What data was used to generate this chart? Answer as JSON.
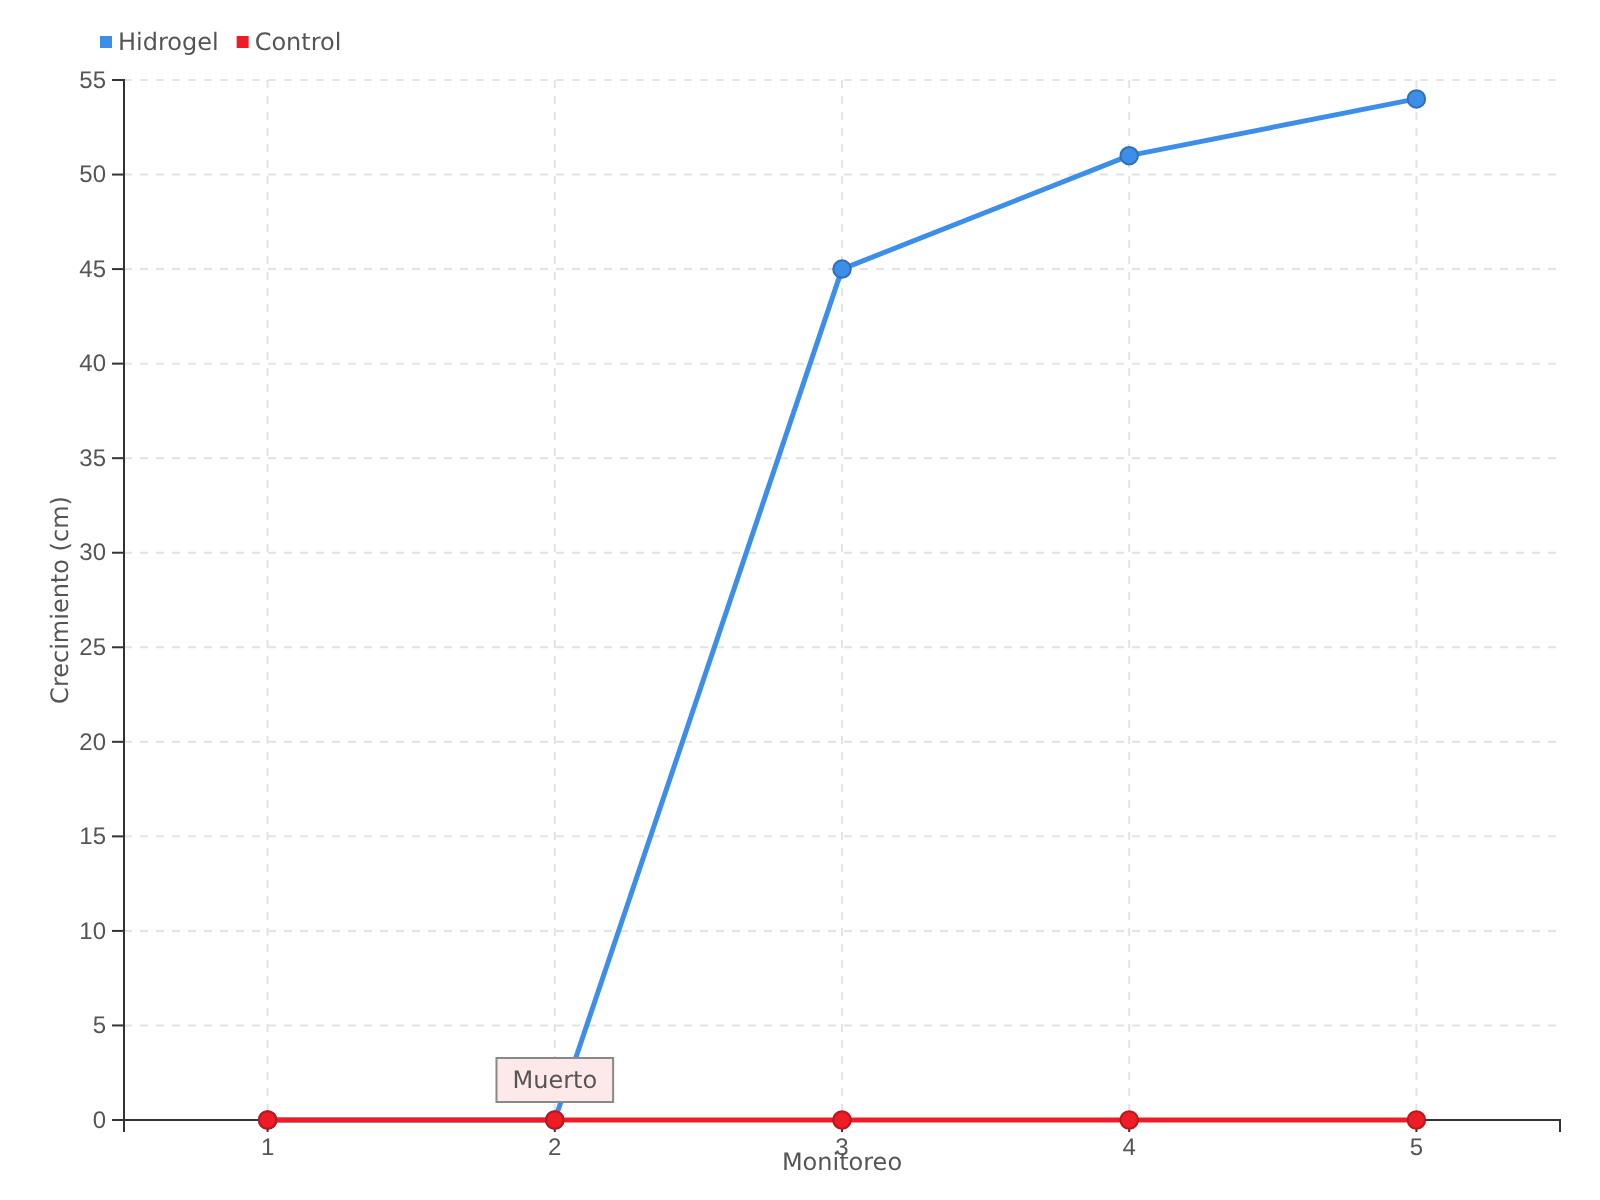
{
  "chart_data": {
    "type": "line",
    "xlabel": "Monitoreo",
    "ylabel": "Crecimiento (cm)",
    "categories": [
      "1",
      "2",
      "3",
      "4",
      "5"
    ],
    "series": [
      {
        "name": "Hidrogel",
        "color": "#3d8ee8",
        "values": [
          0,
          0,
          45,
          51,
          54
        ]
      },
      {
        "name": "Control",
        "color": "#ee1c25",
        "values": [
          0,
          0,
          0,
          0,
          0
        ]
      }
    ],
    "ylim": [
      0,
      55
    ],
    "yticks": [
      0,
      5,
      10,
      15,
      20,
      25,
      30,
      35,
      40,
      45,
      50,
      55
    ],
    "grid": true,
    "legend": "top left",
    "marker": "circle",
    "line_style": "solid",
    "annotations": [
      {
        "text": "Muerto",
        "x": "2",
        "y": 0
      }
    ]
  }
}
